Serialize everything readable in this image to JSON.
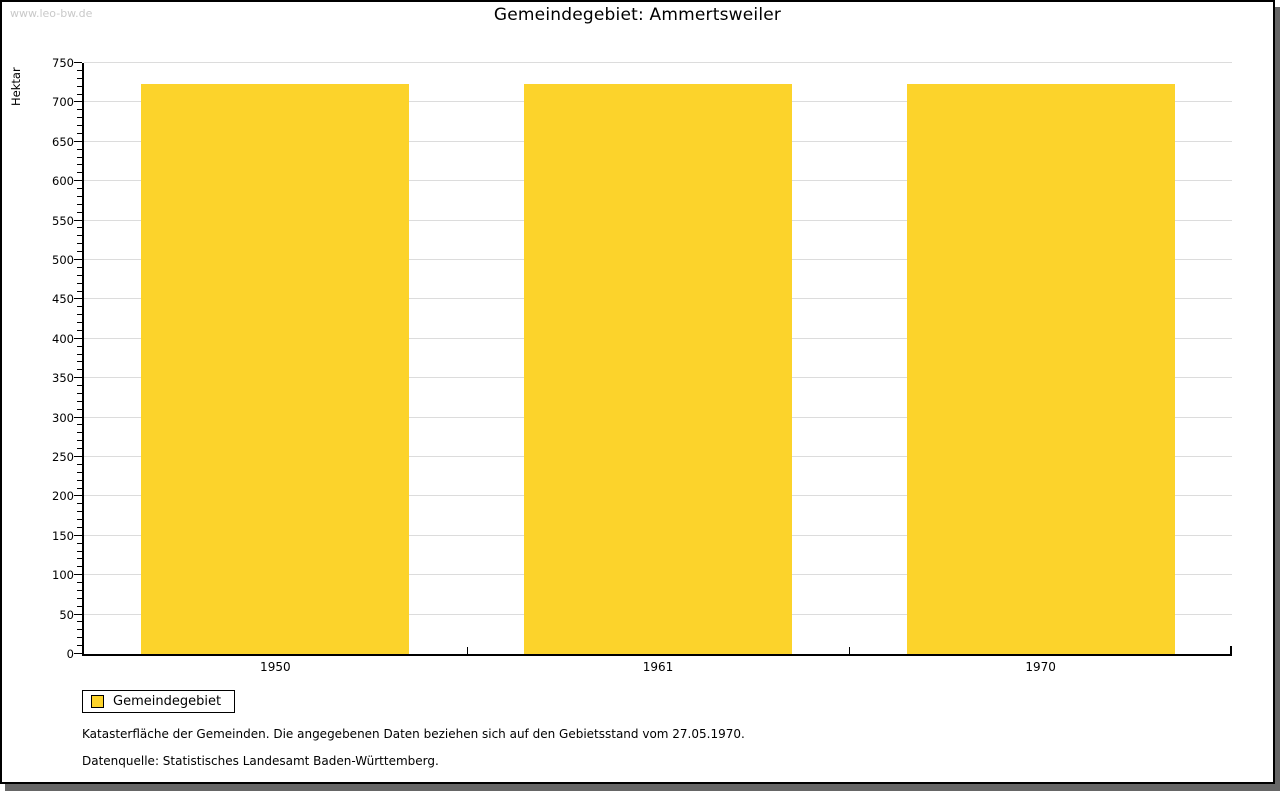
{
  "watermark": "www.leo-bw.de",
  "chart_data": {
    "type": "bar",
    "title": "Gemeindegebiet: Ammertsweiler",
    "categories": [
      "1950",
      "1961",
      "1970"
    ],
    "series": [
      {
        "name": "Gemeindegebiet",
        "values": [
          724,
          724,
          724
        ]
      }
    ],
    "xlabel": "",
    "ylabel": "Hektar",
    "ylim": [
      0,
      750
    ],
    "y_major_step": 50,
    "y_minor_step": 10,
    "grid": "horizontal-major-only",
    "gridline_color": "#dcdcdc",
    "bar_color": "#fcd32b",
    "bar_width_fraction": 0.7,
    "legend_position": "bottom-left"
  },
  "legend": {
    "items": [
      {
        "label": "Gemeindegebiet",
        "color": "#fcd32b"
      }
    ]
  },
  "footnotes": [
    "Katasterfläche der Gemeinden. Die angegebenen Daten beziehen sich auf den Gebietsstand vom 27.05.1970.",
    "Datenquelle: Statistisches Landesamt Baden-Württemberg."
  ]
}
